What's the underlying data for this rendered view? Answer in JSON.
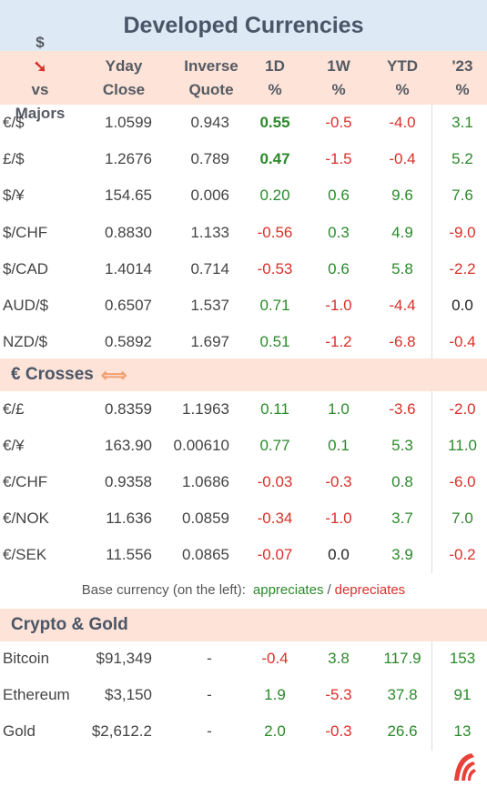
{
  "title": "Developed Currencies",
  "header": {
    "col1_line1": "$",
    "col1_line1b": "vs",
    "col1_line2": "Majors",
    "close_line1": "Yday",
    "close_line2": "Close",
    "inverse_line1": "Inverse",
    "inverse_line2": "Quote",
    "d1_line1": "1D",
    "d1_line2": "%",
    "w1_line1": "1W",
    "w1_line2": "%",
    "ytd_line1": "YTD",
    "ytd_line2": "%",
    "y23_line1": "'23",
    "y23_line2": "%"
  },
  "majors": [
    {
      "label": "€/$",
      "close": "1.0599",
      "inverse": "0.943",
      "d1": "0.55",
      "w1": "-0.5",
      "ytd": "-4.0",
      "y23": "3.1"
    },
    {
      "label": "£/$",
      "close": "1.2676",
      "inverse": "0.789",
      "d1": "0.47",
      "w1": "-1.5",
      "ytd": "-0.4",
      "y23": "5.2"
    },
    {
      "label": "$/¥",
      "close": "154.65",
      "inverse": "0.006",
      "d1": "0.20",
      "w1": "0.6",
      "ytd": "9.6",
      "y23": "7.6"
    },
    {
      "label": "$/CHF",
      "close": "0.8830",
      "inverse": "1.133",
      "d1": "-0.56",
      "w1": "0.3",
      "ytd": "4.9",
      "y23": "-9.0"
    },
    {
      "label": "$/CAD",
      "close": "1.4014",
      "inverse": "0.714",
      "d1": "-0.53",
      "w1": "0.6",
      "ytd": "5.8",
      "y23": "-2.2"
    },
    {
      "label": "AUD/$",
      "close": "0.6507",
      "inverse": "1.537",
      "d1": "0.71",
      "w1": "-1.0",
      "ytd": "-4.4",
      "y23": "0.0"
    },
    {
      "label": "NZD/$",
      "close": "0.5892",
      "inverse": "1.697",
      "d1": "0.51",
      "w1": "-1.2",
      "ytd": "-6.8",
      "y23": "-0.4"
    }
  ],
  "crosses_title": "€ Crosses",
  "crosses": [
    {
      "label": "€/£",
      "close": "0.8359",
      "inverse": "1.1963",
      "d1": "0.11",
      "w1": "1.0",
      "ytd": "-3.6",
      "y23": "-2.0"
    },
    {
      "label": "€/¥",
      "close": "163.90",
      "inverse": "0.00610",
      "d1": "0.77",
      "w1": "0.1",
      "ytd": "5.3",
      "y23": "11.0"
    },
    {
      "label": "€/CHF",
      "close": "0.9358",
      "inverse": "1.0686",
      "d1": "-0.03",
      "w1": "-0.3",
      "ytd": "0.8",
      "y23": "-6.0"
    },
    {
      "label": "€/NOK",
      "close": "11.636",
      "inverse": "0.0859",
      "d1": "-0.34",
      "w1": "-1.0",
      "ytd": "3.7",
      "y23": "7.0"
    },
    {
      "label": "€/SEK",
      "close": "11.556",
      "inverse": "0.0865",
      "d1": "-0.07",
      "w1": "0.0",
      "ytd": "3.9",
      "y23": "-0.2"
    }
  ],
  "legend": {
    "prefix": "Base currency (on the left):",
    "appreciates": "appreciates",
    "separator": "/",
    "depreciates": "depreciates"
  },
  "crypto_title": "Crypto & Gold",
  "crypto": [
    {
      "label": "Bitcoin",
      "close": "$91,349",
      "inverse": "-",
      "d1": "-0.4",
      "w1": "3.8",
      "ytd": "117.9",
      "y23": "153"
    },
    {
      "label": "Ethereum",
      "close": "$3,150",
      "inverse": "-",
      "d1": "1.9",
      "w1": "-5.3",
      "ytd": "37.8",
      "y23": "91"
    },
    {
      "label": "Gold",
      "close": "$2,612.2",
      "inverse": "-",
      "d1": "2.0",
      "w1": "-0.3",
      "ytd": "26.6",
      "y23": "13"
    }
  ],
  "colors": {
    "positive": "#2a8a2a",
    "negative": "#d9302a",
    "neutral": "#222222",
    "title_bg": "#dde9f5",
    "header_bg": "#fde3d8",
    "logo": "#e8413a"
  },
  "icons": {
    "down_arrow": "down-arrow-icon",
    "swap": "swap-arrows-icon",
    "logo": "brand-logo-icon"
  }
}
